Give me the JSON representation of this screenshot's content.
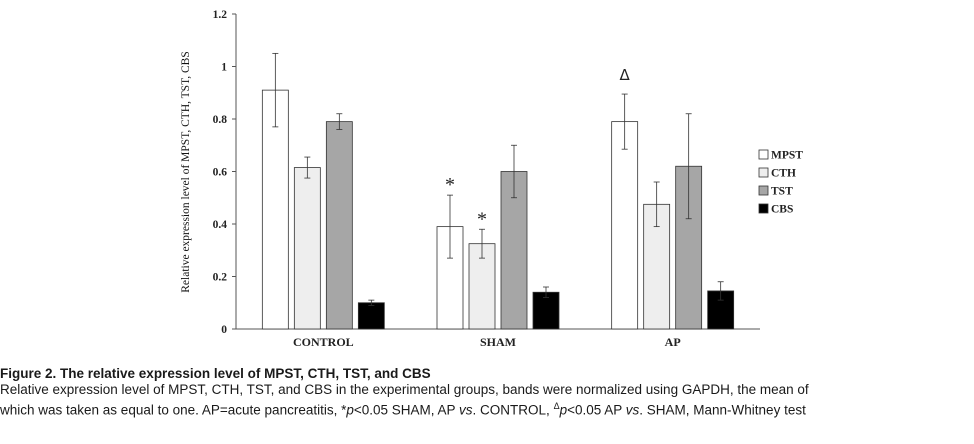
{
  "chart_data": {
    "type": "bar",
    "categories": [
      "CONTROL",
      "SHAM",
      "AP"
    ],
    "ylabel": "Relative expression level of MPST, CTH, TST, CBS",
    "ylim": [
      0,
      1.2
    ],
    "yticks": [
      "0",
      "0.2",
      "0.4",
      "0.6",
      "0.8",
      "1",
      "1.2"
    ],
    "legend_position": "right",
    "series": [
      {
        "name": "MPST",
        "color": "#ffffff",
        "values": [
          0.91,
          0.39,
          0.79
        ],
        "errors": [
          0.14,
          0.12,
          0.105
        ],
        "markers": [
          "",
          "*",
          "Δ"
        ]
      },
      {
        "name": "CTH",
        "color": "#eeeeee",
        "values": [
          0.615,
          0.325,
          0.475
        ],
        "errors": [
          0.04,
          0.055,
          0.085
        ],
        "markers": [
          "",
          "*",
          ""
        ]
      },
      {
        "name": "TST",
        "color": "#a6a6a6",
        "values": [
          0.79,
          0.6,
          0.62
        ],
        "errors": [
          0.03,
          0.1,
          0.2
        ],
        "markers": [
          "",
          "",
          ""
        ]
      },
      {
        "name": "CBS",
        "color": "#000000",
        "values": [
          0.1,
          0.14,
          0.145
        ],
        "errors": [
          0.01,
          0.02,
          0.035
        ],
        "markers": [
          "",
          "",
          ""
        ]
      }
    ]
  },
  "caption": {
    "title": "Figure 2. The relative expression level of MPST, CTH, TST, and CBS",
    "line1": "Relative expression level of MPST, CTH, TST, and CBS in the experimental groups, bands were normalized using GAPDH, the mean of",
    "line2_a": "which was taken as equal to one. AP=acute pancreatitis, *",
    "line2_p1": "p",
    "line2_b": "<0.05 SHAM, AP ",
    "line2_vs1": "vs",
    "line2_c": ". CONTROL, ",
    "line2_delta": "Δ",
    "line2_p2": "p",
    "line2_d": "<0.05 AP ",
    "line2_vs2": "vs",
    "line2_e": ". SHAM, Mann-Whitney test"
  }
}
